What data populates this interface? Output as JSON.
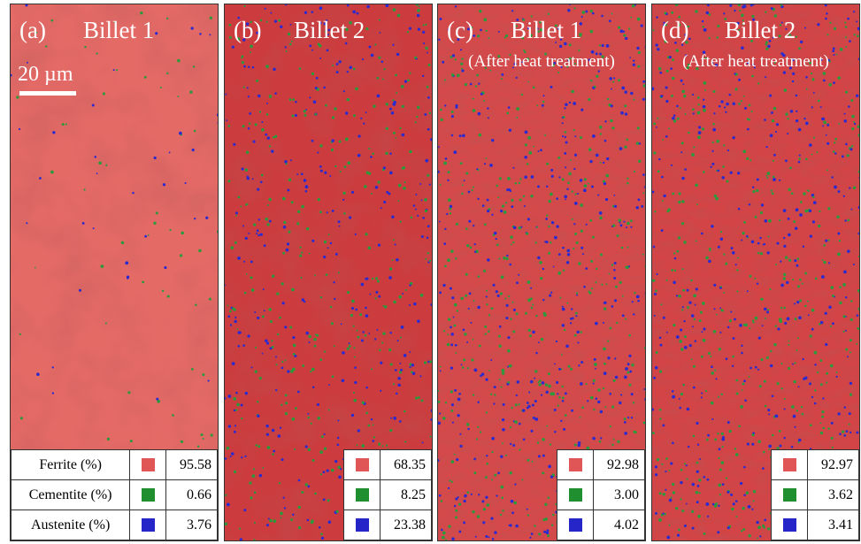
{
  "panels": [
    {
      "label": "(a)",
      "title": "Billet 1",
      "scale_bar": "20 µm",
      "rows": [
        {
          "label": "Ferrite (%)",
          "value": "95.58"
        },
        {
          "label": "Cementite (%)",
          "value": "0.66"
        },
        {
          "label": "Austenite (%)",
          "value": "3.76"
        }
      ]
    },
    {
      "label": "(b)",
      "title": "Billet 2",
      "rows": [
        {
          "value": "68.35"
        },
        {
          "value": "8.25"
        },
        {
          "value": "23.38"
        }
      ]
    },
    {
      "label": "(c)",
      "title": "Billet 1",
      "subtitle": "(After heat treatment)",
      "rows": [
        {
          "value": "92.98"
        },
        {
          "value": "3.00"
        },
        {
          "value": "4.02"
        }
      ]
    },
    {
      "label": "(d)",
      "title": "Billet 2",
      "subtitle": "(After heat treatment)",
      "rows": [
        {
          "value": "92.97"
        },
        {
          "value": "3.62"
        },
        {
          "value": "3.41"
        }
      ]
    }
  ]
}
